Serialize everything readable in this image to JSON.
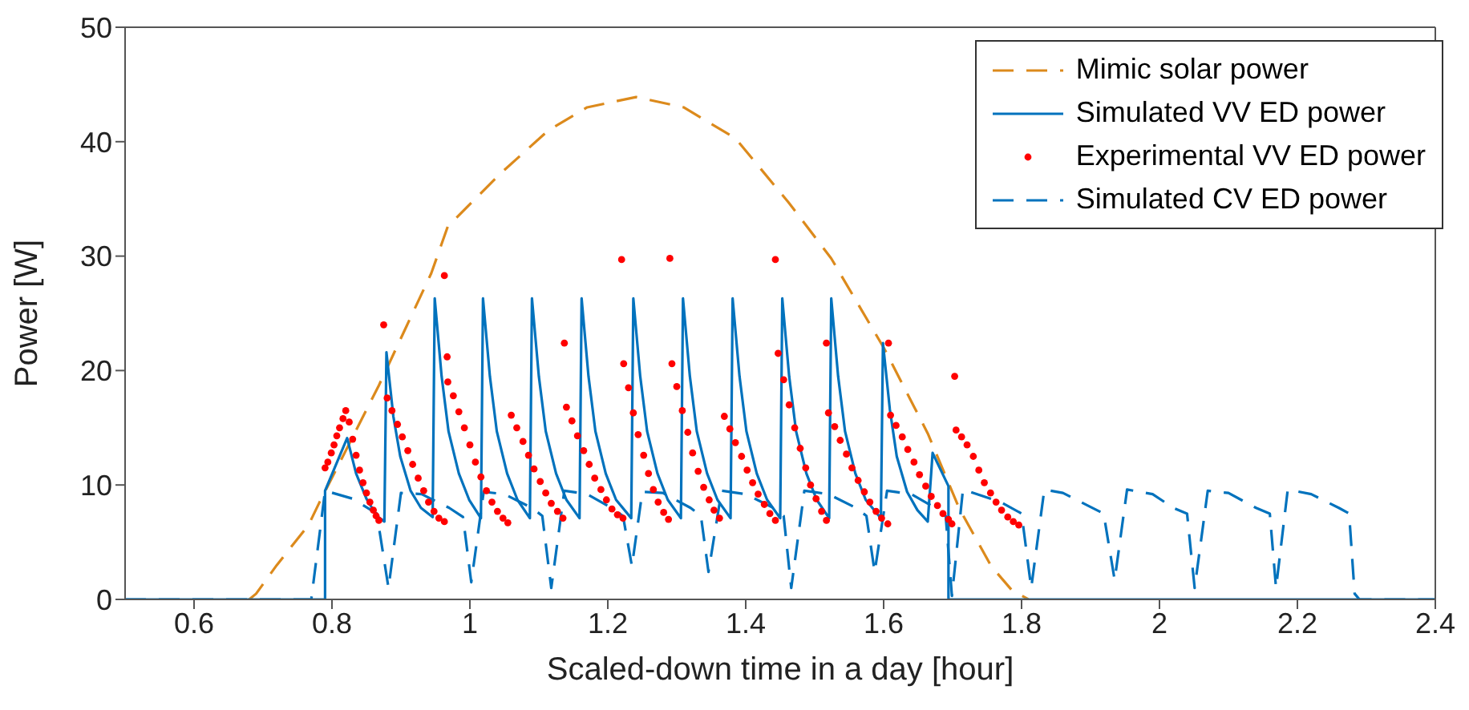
{
  "chart_data": {
    "type": "line",
    "xlabel": "Scaled-down time in a day  [hour]",
    "ylabel": "Power [W]",
    "xlim": [
      0.5,
      2.4
    ],
    "xticks": [
      0.6,
      0.8,
      1,
      1.2,
      1.4,
      1.6,
      1.8,
      2,
      2.2,
      2.4
    ],
    "ylim": [
      0,
      50
    ],
    "yticks": [
      0,
      10,
      20,
      30,
      40,
      50
    ],
    "legend": "top right",
    "series": [
      {
        "name": "Mimic solar power",
        "line_style": "dashed",
        "color": "#dc8a1c",
        "x": [
          0.68,
          0.69,
          0.72,
          0.766,
          0.782,
          0.82,
          0.868,
          0.944,
          0.968,
          1.044,
          1.114,
          1.17,
          1.241,
          1.31,
          1.385,
          1.462,
          1.524,
          1.601,
          1.664,
          1.71,
          1.756,
          1.786,
          1.81
        ],
        "values": [
          0,
          0.5,
          3,
          6.5,
          8.5,
          13,
          18.7,
          28.5,
          32.6,
          37.2,
          41,
          43,
          43.9,
          43,
          40.3,
          34.7,
          29.8,
          21.9,
          14.5,
          7.9,
          2.9,
          0.8,
          0
        ]
      },
      {
        "name": "Simulated VV ED power",
        "line_style": "solid",
        "color": "#0072bd",
        "x": [
          0.5,
          0.79,
          0.79,
          0.822,
          0.835,
          0.85,
          0.865,
          0.876,
          0.879,
          0.889,
          0.899,
          0.914,
          0.929,
          0.946,
          0.949,
          0.959,
          0.969,
          0.984,
          0.999,
          1.016,
          1.019,
          1.029,
          1.039,
          1.054,
          1.069,
          1.087,
          1.09,
          1.1,
          1.11,
          1.125,
          1.14,
          1.159,
          1.162,
          1.172,
          1.182,
          1.197,
          1.212,
          1.234,
          1.237,
          1.247,
          1.257,
          1.272,
          1.287,
          1.306,
          1.309,
          1.319,
          1.329,
          1.344,
          1.359,
          1.378,
          1.381,
          1.391,
          1.401,
          1.416,
          1.431,
          1.45,
          1.453,
          1.463,
          1.473,
          1.488,
          1.503,
          1.521,
          1.524,
          1.534,
          1.544,
          1.559,
          1.574,
          1.596,
          1.599,
          1.609,
          1.619,
          1.634,
          1.649,
          1.664,
          1.671,
          1.694,
          1.694,
          2.4
        ],
        "values": [
          0,
          0,
          9.5,
          14.1,
          11,
          8.8,
          7.3,
          6.8,
          21.6,
          16,
          12.5,
          9.5,
          8,
          7.2,
          26.3,
          19.5,
          14.7,
          11,
          8.7,
          7.1,
          26.3,
          19.5,
          14.7,
          11,
          8.7,
          7.1,
          26.3,
          19.5,
          14.7,
          11,
          8.7,
          7.1,
          26.3,
          19.5,
          14.7,
          11,
          8.7,
          7.1,
          26.3,
          19.5,
          14.7,
          11,
          8.7,
          7.1,
          26.3,
          19.5,
          14.7,
          11,
          8.7,
          7.1,
          26.3,
          19.5,
          14.7,
          11,
          8.7,
          7.1,
          26.3,
          19.5,
          14.7,
          11,
          8.7,
          7.1,
          26.3,
          19.5,
          14.7,
          11,
          8.7,
          7.1,
          22.4,
          16.6,
          12.5,
          9.4,
          7.8,
          6.8,
          12.8,
          9.9,
          0,
          0
        ]
      },
      {
        "name": "Experimental VV ED power",
        "type": "scatter",
        "marker": "circle",
        "color": "#ff0000",
        "x": [
          0.79,
          0.794,
          0.799,
          0.803,
          0.807,
          0.811,
          0.816,
          0.82,
          0.825,
          0.83,
          0.835,
          0.84,
          0.845,
          0.85,
          0.855,
          0.86,
          0.864,
          0.868,
          0.875,
          0.88,
          0.887,
          0.895,
          0.902,
          0.91,
          0.917,
          0.925,
          0.933,
          0.94,
          0.948,
          0.955,
          0.963,
          0.963,
          0.967,
          0.968,
          0.976,
          0.984,
          0.992,
          1.0,
          1.008,
          1.016,
          1.024,
          1.032,
          1.04,
          1.048,
          1.055,
          1.06,
          1.068,
          1.077,
          1.085,
          1.093,
          1.102,
          1.11,
          1.118,
          1.127,
          1.135,
          1.137,
          1.14,
          1.148,
          1.156,
          1.165,
          1.173,
          1.181,
          1.19,
          1.198,
          1.206,
          1.214,
          1.222,
          1.22,
          1.223,
          1.23,
          1.237,
          1.244,
          1.252,
          1.259,
          1.266,
          1.273,
          1.281,
          1.288,
          1.29,
          1.293,
          1.3,
          1.308,
          1.316,
          1.323,
          1.331,
          1.339,
          1.347,
          1.354,
          1.362,
          1.369,
          1.377,
          1.385,
          1.394,
          1.402,
          1.41,
          1.418,
          1.427,
          1.435,
          1.443,
          1.443,
          1.447,
          1.455,
          1.463,
          1.471,
          1.479,
          1.487,
          1.494,
          1.502,
          1.51,
          1.517,
          1.517,
          1.52,
          1.529,
          1.537,
          1.546,
          1.554,
          1.563,
          1.572,
          1.58,
          1.589,
          1.597,
          1.606,
          1.607,
          1.61,
          1.618,
          1.627,
          1.635,
          1.644,
          1.652,
          1.661,
          1.669,
          1.678,
          1.686,
          1.694,
          1.699,
          1.703,
          1.705,
          1.713,
          1.721,
          1.73,
          1.738,
          1.746,
          1.755,
          1.763,
          1.771,
          1.78,
          1.788,
          1.796
        ],
        "values": [
          11.5,
          12,
          12.8,
          13.5,
          14.3,
          15,
          15.8,
          16.5,
          15.5,
          14,
          12.6,
          11.3,
          10.2,
          9.3,
          8.5,
          7.8,
          7.3,
          6.9,
          24,
          17.6,
          16.5,
          15.3,
          14.2,
          13,
          11.8,
          10.6,
          9.5,
          8.5,
          7.7,
          7.1,
          6.8,
          28.3,
          21.2,
          19,
          17.8,
          16.4,
          15,
          13.5,
          12,
          10.7,
          9.5,
          8.5,
          7.7,
          7.1,
          6.7,
          16.1,
          15,
          13.8,
          12.6,
          11.4,
          10.3,
          9.3,
          8.4,
          7.7,
          7.1,
          22.4,
          16.8,
          15.6,
          14.3,
          13,
          11.8,
          10.6,
          9.6,
          8.7,
          7.9,
          7.4,
          7.1,
          29.7,
          20.6,
          18.5,
          16.3,
          14.4,
          12.6,
          11,
          9.6,
          8.5,
          7.6,
          7,
          29.8,
          20.6,
          18.6,
          16.5,
          14.6,
          12.8,
          11.2,
          9.8,
          8.7,
          7.8,
          7.1,
          16,
          14.9,
          13.7,
          12.5,
          11.3,
          10.2,
          9.2,
          8.3,
          7.5,
          6.9,
          29.7,
          21.5,
          19.2,
          17,
          15,
          13.2,
          11.5,
          10,
          8.8,
          7.7,
          6.9,
          22.4,
          16.3,
          15.1,
          13.9,
          12.7,
          11.5,
          10.4,
          9.4,
          8.5,
          7.7,
          7.1,
          6.6,
          22.4,
          16.1,
          15.2,
          14.2,
          13.1,
          12,
          10.9,
          9.9,
          9,
          8.2,
          7.5,
          7,
          6.6,
          19.5,
          14.8,
          14.2,
          13.5,
          12.5,
          11.3,
          10.2,
          9.3,
          8.5,
          7.8,
          7.2,
          6.8,
          6.5
        ]
      },
      {
        "name": "Simulated CV ED power",
        "line_style": "dashed",
        "color": "#0072bd",
        "x": [
          0.5,
          0.77,
          0.79,
          0.83,
          0.865,
          0.882,
          0.9,
          0.93,
          0.97,
          0.99,
          1.002,
          1.02,
          1.05,
          1.09,
          1.105,
          1.118,
          1.137,
          1.17,
          1.205,
          1.222,
          1.235,
          1.25,
          1.28,
          1.32,
          1.335,
          1.346,
          1.365,
          1.4,
          1.44,
          1.455,
          1.466,
          1.485,
          1.52,
          1.56,
          1.575,
          1.587,
          1.605,
          1.64,
          1.675,
          1.69,
          1.699,
          1.715,
          1.77,
          1.8,
          1.814,
          1.833,
          1.86,
          1.896,
          1.919,
          1.935,
          1.953,
          1.99,
          2.02,
          2.04,
          2.051,
          2.07,
          2.1,
          2.14,
          2.16,
          2.169,
          2.186,
          2.22,
          2.26,
          2.275,
          2.283,
          2.29,
          2.4
        ],
        "values": [
          0,
          0,
          9.5,
          8.8,
          7.5,
          1,
          9.3,
          9.2,
          8,
          7.2,
          1.5,
          9.4,
          9.2,
          8,
          7.3,
          1,
          9.5,
          9.2,
          8,
          7.3,
          2.9,
          9.4,
          9.3,
          8,
          7.3,
          2.4,
          9.5,
          9.2,
          8,
          7.3,
          1,
          9.5,
          9.2,
          8,
          7.3,
          2.4,
          9.5,
          9.2,
          8,
          7.3,
          0.3,
          9.6,
          8.5,
          7.5,
          1,
          9.6,
          9.3,
          8.2,
          7.5,
          1.7,
          9.6,
          9.2,
          8,
          7.5,
          1,
          9.5,
          9.3,
          8,
          7.5,
          1,
          9.6,
          9.2,
          8,
          7.5,
          0.5,
          0,
          0
        ]
      }
    ]
  }
}
